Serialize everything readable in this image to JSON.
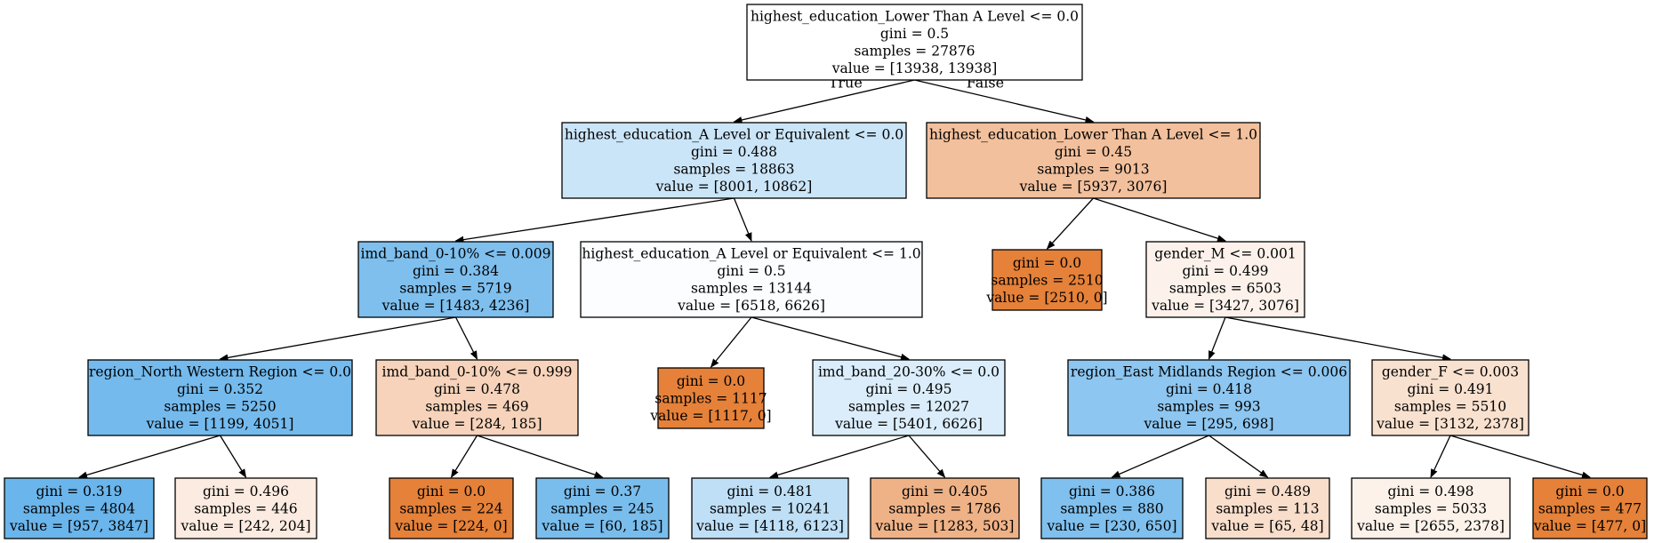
{
  "tree": {
    "nodes": [
      {
        "id": "n0",
        "lines": [
          "highest_education_Lower Than A Level <= 0.0",
          "gini = 0.5",
          "samples = 27876",
          "value = [13938, 13938]"
        ],
        "fill": "#ffffff"
      },
      {
        "id": "n1",
        "lines": [
          "highest_education_A Level or Equivalent <= 0.0",
          "gini = 0.488",
          "samples = 18863",
          "value = [8001, 10862]"
        ],
        "fill": "#cbe5f8"
      },
      {
        "id": "n2",
        "lines": [
          "highest_education_Lower Than A Level <= 1.0",
          "gini = 0.45",
          "samples = 9013",
          "value = [5937, 3076]"
        ],
        "fill": "#f2c09c"
      },
      {
        "id": "n3",
        "lines": [
          "imd_band_0-10% <= 0.009",
          "gini = 0.384",
          "samples = 5719",
          "value = [1483, 4236]"
        ],
        "fill": "#7ebfee"
      },
      {
        "id": "n4",
        "lines": [
          "highest_education_A Level or Equivalent <= 1.0",
          "gini = 0.5",
          "samples = 13144",
          "value = [6518, 6626]"
        ],
        "fill": "#fcfdff"
      },
      {
        "id": "n5",
        "lines": [
          "gini = 0.0",
          "samples = 2510",
          "value = [2510, 0]"
        ],
        "fill": "#e58139"
      },
      {
        "id": "n6",
        "lines": [
          "gender_M <= 0.001",
          "gini = 0.499",
          "samples = 6503",
          "value = [3427, 3076]"
        ],
        "fill": "#fcf2eb"
      },
      {
        "id": "n7",
        "lines": [
          "region_North Western Region <= 0.0",
          "gini = 0.352",
          "samples = 5250",
          "value = [1199, 4051]"
        ],
        "fill": "#74baed"
      },
      {
        "id": "n8",
        "lines": [
          "imd_band_0-10% <= 0.999",
          "gini = 0.478",
          "samples = 469",
          "value = [284, 185]"
        ],
        "fill": "#f6d3ba"
      },
      {
        "id": "n9",
        "lines": [
          "gini = 0.0",
          "samples = 1117",
          "value = [1117, 0]"
        ],
        "fill": "#e58139"
      },
      {
        "id": "n10",
        "lines": [
          "imd_band_20-30% <= 0.0",
          "gini = 0.495",
          "samples = 12027",
          "value = [5401, 6626]"
        ],
        "fill": "#dbedfa"
      },
      {
        "id": "n11",
        "lines": [
          "region_East Midlands Region <= 0.006",
          "gini = 0.418",
          "samples = 993",
          "value = [295, 698]"
        ],
        "fill": "#8dc6f0"
      },
      {
        "id": "n12",
        "lines": [
          "gender_F <= 0.003",
          "gini = 0.491",
          "samples = 5510",
          "value = [3132, 2378]"
        ],
        "fill": "#f9e1cf"
      },
      {
        "id": "n13",
        "lines": [
          "gini = 0.319",
          "samples = 4804",
          "value = [957, 3847]"
        ],
        "fill": "#6ab5eb"
      },
      {
        "id": "n14",
        "lines": [
          "gini = 0.496",
          "samples = 446",
          "value = [242, 204]"
        ],
        "fill": "#fbebe0"
      },
      {
        "id": "n15",
        "lines": [
          "gini = 0.0",
          "samples = 224",
          "value = [224, 0]"
        ],
        "fill": "#e58139"
      },
      {
        "id": "n16",
        "lines": [
          "gini = 0.37",
          "samples = 245",
          "value = [60, 185]"
        ],
        "fill": "#79bded"
      },
      {
        "id": "n17",
        "lines": [
          "gini = 0.481",
          "samples = 10241",
          "value = [4118, 6123]"
        ],
        "fill": "#bedff6"
      },
      {
        "id": "n18",
        "lines": [
          "gini = 0.405",
          "samples = 1786",
          "value = [1283, 503]"
        ],
        "fill": "#efb287"
      },
      {
        "id": "n19",
        "lines": [
          "gini = 0.386",
          "samples = 880",
          "value = [230, 650]"
        ],
        "fill": "#7fc0ee"
      },
      {
        "id": "n20",
        "lines": [
          "gini = 0.489",
          "samples = 113",
          "value = [65, 48]"
        ],
        "fill": "#f8decb"
      },
      {
        "id": "n21",
        "lines": [
          "gini = 0.498",
          "samples = 5033",
          "value = [2655, 2378]"
        ],
        "fill": "#fcf2ea"
      },
      {
        "id": "n22",
        "lines": [
          "gini = 0.0",
          "samples = 477",
          "value = [477, 0]"
        ],
        "fill": "#e58139"
      }
    ],
    "edges": [
      {
        "from": "n0",
        "to": "n1",
        "label": "True"
      },
      {
        "from": "n0",
        "to": "n2",
        "label": "False"
      },
      {
        "from": "n1",
        "to": "n3",
        "label": ""
      },
      {
        "from": "n1",
        "to": "n4",
        "label": ""
      },
      {
        "from": "n2",
        "to": "n5",
        "label": ""
      },
      {
        "from": "n2",
        "to": "n6",
        "label": ""
      },
      {
        "from": "n3",
        "to": "n7",
        "label": ""
      },
      {
        "from": "n3",
        "to": "n8",
        "label": ""
      },
      {
        "from": "n4",
        "to": "n9",
        "label": ""
      },
      {
        "from": "n4",
        "to": "n10",
        "label": ""
      },
      {
        "from": "n6",
        "to": "n11",
        "label": ""
      },
      {
        "from": "n6",
        "to": "n12",
        "label": ""
      },
      {
        "from": "n7",
        "to": "n13",
        "label": ""
      },
      {
        "from": "n7",
        "to": "n14",
        "label": ""
      },
      {
        "from": "n8",
        "to": "n15",
        "label": ""
      },
      {
        "from": "n8",
        "to": "n16",
        "label": ""
      },
      {
        "from": "n10",
        "to": "n17",
        "label": ""
      },
      {
        "from": "n10",
        "to": "n18",
        "label": ""
      },
      {
        "from": "n11",
        "to": "n19",
        "label": ""
      },
      {
        "from": "n11",
        "to": "n20",
        "label": ""
      },
      {
        "from": "n12",
        "to": "n21",
        "label": ""
      },
      {
        "from": "n12",
        "to": "n22",
        "label": ""
      }
    ]
  }
}
